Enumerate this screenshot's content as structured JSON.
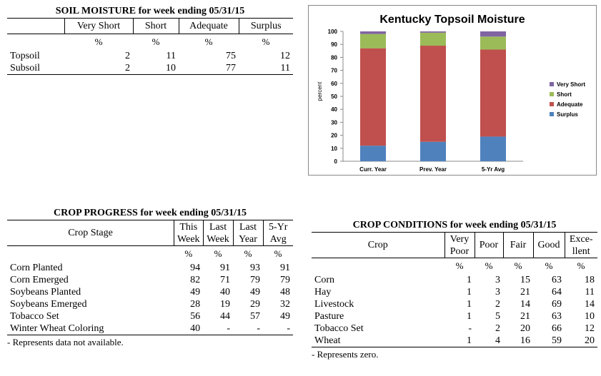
{
  "soil": {
    "title": "SOIL MOISTURE for week ending 05/31/15",
    "columns": [
      "Very Short",
      "Short",
      "Adequate",
      "Surplus"
    ],
    "units": [
      "%",
      "%",
      "%",
      "%"
    ],
    "rows": [
      {
        "label": "Topsoil",
        "values": [
          "2",
          "11",
          "75",
          "12"
        ]
      },
      {
        "label": "Subsoil",
        "values": [
          "2",
          "10",
          "77",
          "11"
        ]
      }
    ]
  },
  "progress": {
    "title": "CROP PROGRESS for week ending 05/31/15",
    "stage_header": "Crop Stage",
    "columns": [
      {
        "line1": "This",
        "line2": "Week"
      },
      {
        "line1": "Last",
        "line2": "Week"
      },
      {
        "line1": "Last",
        "line2": "Year"
      },
      {
        "line1": "5-Yr",
        "line2": "Avg"
      }
    ],
    "units": [
      "%",
      "%",
      "%",
      "%"
    ],
    "rows": [
      {
        "label": "Corn Planted",
        "values": [
          "94",
          "91",
          "93",
          "91"
        ]
      },
      {
        "label": "Corn Emerged",
        "values": [
          "82",
          "71",
          "79",
          "79"
        ]
      },
      {
        "label": "Soybeans Planted",
        "values": [
          "49",
          "40",
          "49",
          "48"
        ]
      },
      {
        "label": "Soybeans Emerged",
        "values": [
          "28",
          "19",
          "29",
          "32"
        ]
      },
      {
        "label": "Tobacco Set",
        "values": [
          "56",
          "44",
          "57",
          "49"
        ]
      },
      {
        "label": "Winter Wheat Coloring",
        "values": [
          "40",
          "-",
          "-",
          "-"
        ]
      }
    ],
    "note": "- Represents data not available."
  },
  "conditions": {
    "title": "CROP CONDITIONS for week ending 05/31/15",
    "crop_header": "Crop",
    "columns": [
      {
        "line1": "Very",
        "line2": "Poor"
      },
      {
        "line1": "Poor",
        "line2": ""
      },
      {
        "line1": "Fair",
        "line2": ""
      },
      {
        "line1": "Good",
        "line2": ""
      },
      {
        "line1": "Exce-",
        "line2": "llent"
      }
    ],
    "units": [
      "%",
      "%",
      "%",
      "%",
      "%"
    ],
    "rows": [
      {
        "label": "Corn",
        "values": [
          "1",
          "3",
          "15",
          "63",
          "18"
        ]
      },
      {
        "label": "Hay",
        "values": [
          "1",
          "3",
          "21",
          "64",
          "11"
        ]
      },
      {
        "label": "Livestock",
        "values": [
          "1",
          "2",
          "14",
          "69",
          "14"
        ]
      },
      {
        "label": "Pasture",
        "values": [
          "1",
          "5",
          "21",
          "63",
          "10"
        ]
      },
      {
        "label": "Tobacco Set",
        "values": [
          "-",
          "2",
          "20",
          "66",
          "12"
        ]
      },
      {
        "label": "Wheat",
        "values": [
          "1",
          "4",
          "16",
          "59",
          "20"
        ]
      }
    ],
    "note": "- Represents zero."
  },
  "chart_data": {
    "type": "bar",
    "stacked": true,
    "title": "Kentucky Topsoil Moisture",
    "xlabel": "",
    "ylabel": "percent",
    "categories": [
      "Curr. Year",
      "Prev. Year",
      "5-Yr Avg"
    ],
    "ylim": [
      0,
      100
    ],
    "yticks": [
      0,
      10,
      20,
      30,
      40,
      50,
      60,
      70,
      80,
      90,
      100
    ],
    "grid": false,
    "legend_position": "right",
    "series": [
      {
        "name": "Surplus",
        "color": "#4f81bd",
        "values": [
          12,
          15,
          19
        ]
      },
      {
        "name": "Adequate",
        "color": "#c0504d",
        "values": [
          75,
          74,
          67
        ]
      },
      {
        "name": "Short",
        "color": "#9bbb59",
        "values": [
          11,
          10,
          10
        ]
      },
      {
        "name": "Very Short",
        "color": "#8064a2",
        "values": [
          2,
          1,
          4
        ]
      }
    ]
  }
}
